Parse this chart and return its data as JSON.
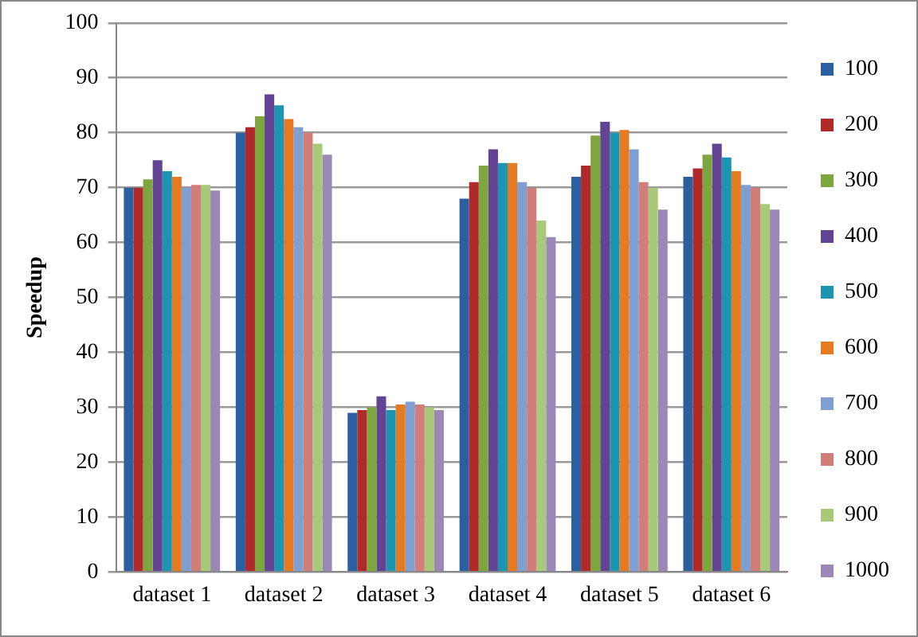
{
  "chart_data": {
    "type": "bar",
    "ylabel": "Speedup",
    "categories": [
      "dataset 1",
      "dataset 2",
      "dataset 3",
      "dataset 4",
      "dataset 5",
      "dataset 6"
    ],
    "series": [
      {
        "name": "100",
        "color": "#2c5fa0",
        "values": [
          70,
          80,
          29,
          68,
          72,
          72
        ]
      },
      {
        "name": "200",
        "color": "#b02a2a",
        "values": [
          70,
          81,
          29.5,
          71,
          74,
          73.5
        ]
      },
      {
        "name": "300",
        "color": "#7ea63e",
        "values": [
          71.5,
          83,
          30,
          74,
          79.5,
          76
        ]
      },
      {
        "name": "400",
        "color": "#634394",
        "values": [
          75,
          87,
          32,
          77,
          82,
          78
        ]
      },
      {
        "name": "500",
        "color": "#1d94b0",
        "values": [
          73,
          85,
          29.5,
          74.5,
          80,
          75.5
        ]
      },
      {
        "name": "600",
        "color": "#e67a22",
        "values": [
          72,
          82.5,
          30.5,
          74.5,
          80.5,
          73
        ]
      },
      {
        "name": "700",
        "color": "#7f9fd0",
        "values": [
          70,
          81,
          31,
          71,
          77,
          70.5
        ]
      },
      {
        "name": "800",
        "color": "#d17d7a",
        "values": [
          70.5,
          80,
          30.5,
          70,
          71,
          70
        ]
      },
      {
        "name": "900",
        "color": "#a9c97a",
        "values": [
          70.5,
          78,
          30,
          64,
          70,
          67
        ]
      },
      {
        "name": "1000",
        "color": "#9b88b7",
        "values": [
          69.5,
          76,
          29.5,
          61,
          66,
          66
        ]
      }
    ],
    "ylim": [
      0,
      100
    ],
    "yticks": [
      0,
      10,
      20,
      30,
      40,
      50,
      60,
      70,
      80,
      90,
      100
    ],
    "grid": "y",
    "legend": "right"
  }
}
